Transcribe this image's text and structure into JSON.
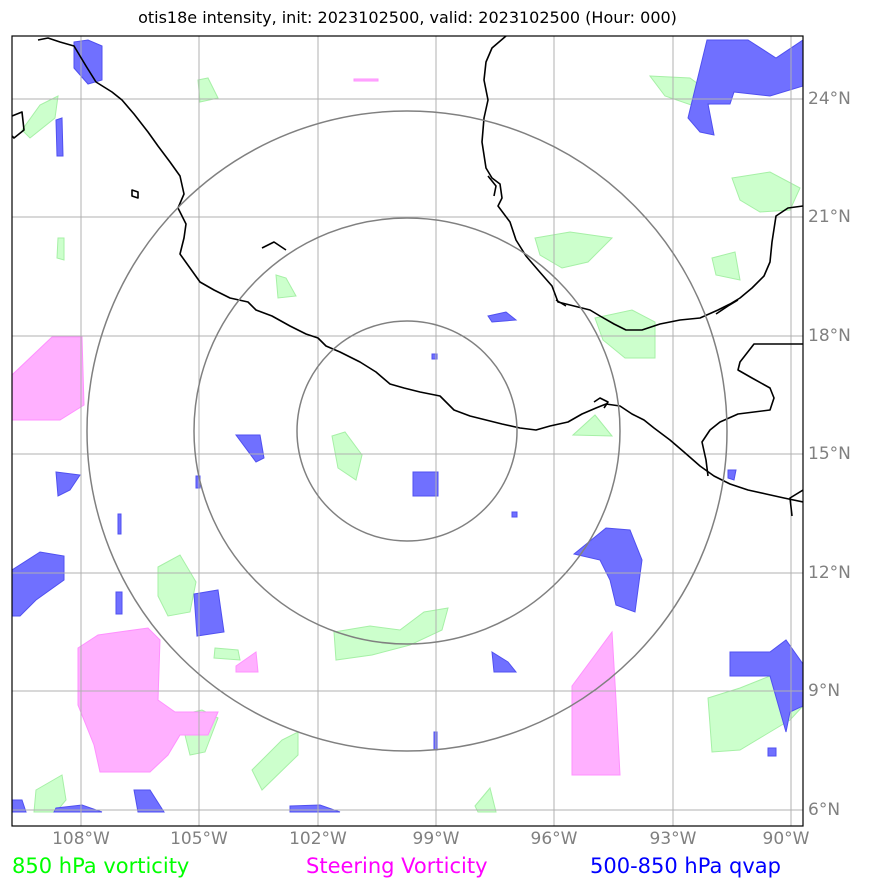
{
  "title": "otis18e intensity, init: 2023102500, valid: 2023102500 (Hour: 000)",
  "lat_labels": [
    "24°N",
    "21°N",
    "18°N",
    "15°N",
    "12°N",
    "9°N",
    "6°N"
  ],
  "lon_labels": [
    "108°W",
    "105°W",
    "102°W",
    "99°W",
    "96°W",
    "93°W",
    "90°W"
  ],
  "legend": [
    {
      "label": "850 hPa vorticity",
      "color": "#00ff00"
    },
    {
      "label": "Steering Vorticity",
      "color": "#ff00ff"
    },
    {
      "label": "500-850 hPa qvap",
      "color": "#0000ff"
    }
  ],
  "range_rings": {
    "center": "15.8°N, 99.7°W",
    "count": 3
  },
  "colors": {
    "vort850": "#ccffcc",
    "steering": "#ffb0ff",
    "qvap": "#7070ff",
    "coast": "#000000",
    "grid": "#b0b0b0",
    "rings": "#808080"
  }
}
